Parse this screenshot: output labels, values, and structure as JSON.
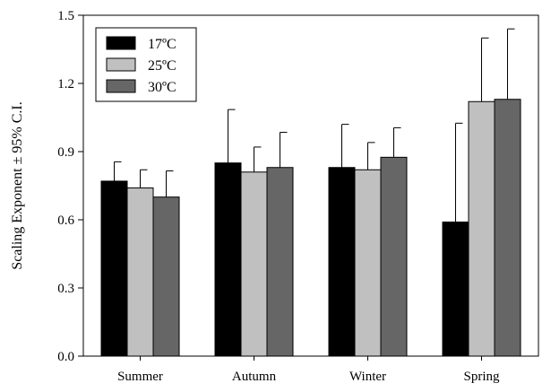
{
  "chart_data": {
    "type": "bar",
    "title": "",
    "xlabel": "",
    "ylabel": "Scaling Exponent ± 95% C.I.",
    "ylim": [
      0,
      1.5
    ],
    "yticks": [
      0.0,
      0.3,
      0.6,
      0.9,
      1.2,
      1.5
    ],
    "ytick_labels": [
      "0.0",
      "0.3",
      "0.6",
      "0.9",
      "1.2",
      "1.5"
    ],
    "grid": false,
    "legend_position": "top-left",
    "categories": [
      "Summer",
      "Autumn",
      "Winter",
      "Spring"
    ],
    "series": [
      {
        "name": "17ºC",
        "color": "#000000",
        "values": [
          0.77,
          0.85,
          0.83,
          0.59
        ],
        "error_upper": [
          0.085,
          0.235,
          0.19,
          0.435
        ]
      },
      {
        "name": "25ºC",
        "color": "#c0c0c0",
        "values": [
          0.74,
          0.81,
          0.82,
          1.12
        ],
        "error_upper": [
          0.08,
          0.11,
          0.12,
          0.28
        ]
      },
      {
        "name": "30ºC",
        "color": "#666666",
        "values": [
          0.7,
          0.83,
          0.875,
          1.13
        ],
        "error_upper": [
          0.115,
          0.155,
          0.13,
          0.31
        ]
      }
    ]
  }
}
